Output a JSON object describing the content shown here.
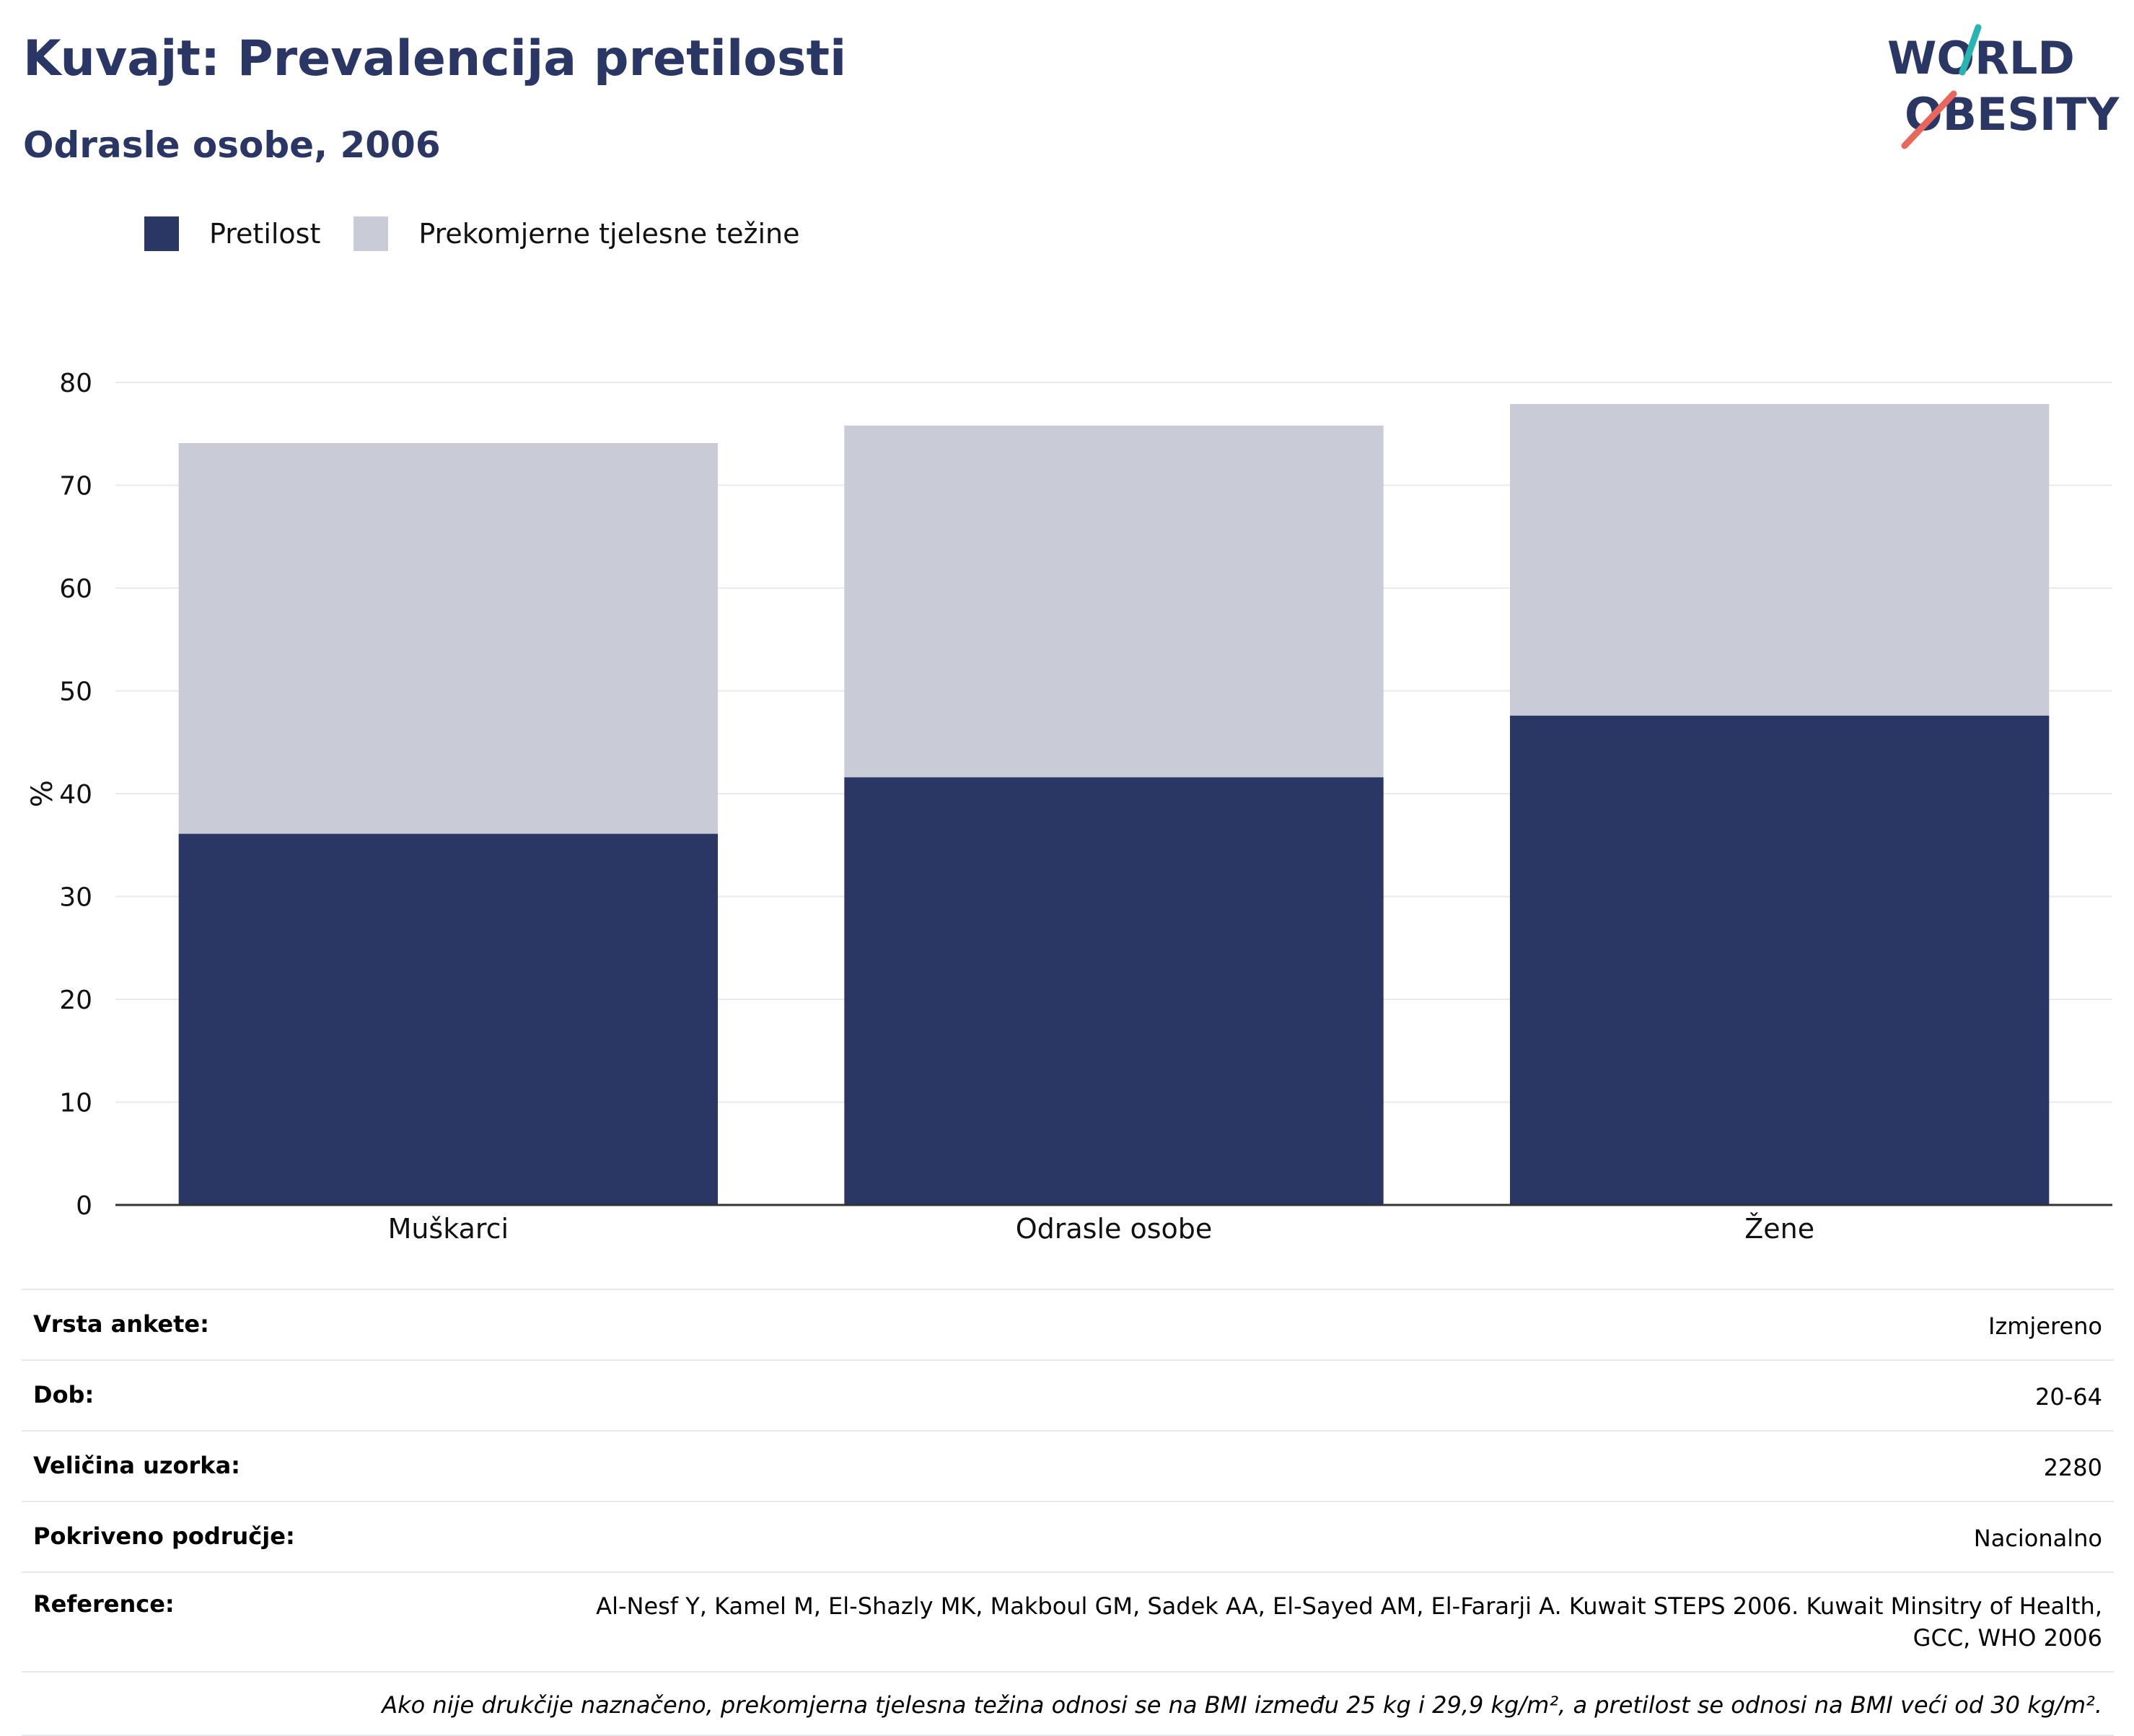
{
  "header": {
    "title": "Kuvajt: Prevalencija pretilosti",
    "subtitle": "Odrasle osobe, 2006"
  },
  "logo": {
    "line1": "WORLD",
    "line2": "OBESITY",
    "colors": {
      "text": "#2a3663",
      "slash_top": "#2ab3b1",
      "slash_bottom": "#e8665a"
    }
  },
  "legend": [
    {
      "label": "Pretilost",
      "color": "#2a3663"
    },
    {
      "label": "Prekomjerne tjelesne težine",
      "color": "#c9cbd6"
    }
  ],
  "chart_data": {
    "type": "bar",
    "stacked": true,
    "categories": [
      "Muškarci",
      "Odrasle osobe",
      "Žene"
    ],
    "series": [
      {
        "name": "Pretilost",
        "values": [
          36.1,
          41.6,
          47.6
        ],
        "color": "#2a3663"
      },
      {
        "name": "Prekomjerne tjelesne težine",
        "values": [
          38.0,
          34.2,
          30.3
        ],
        "color": "#c9cbd6"
      }
    ],
    "ylabel": "%",
    "ylim": [
      0,
      80
    ],
    "yticks": [
      0,
      10,
      20,
      30,
      40,
      50,
      60,
      70,
      80
    ],
    "grid": true,
    "legend_position": "top-left"
  },
  "info": {
    "rows": [
      {
        "label": "Vrsta ankete:",
        "value": "Izmjereno"
      },
      {
        "label": "Dob:",
        "value": "20-64"
      },
      {
        "label": "Veličina uzorka:",
        "value": "2280"
      },
      {
        "label": "Pokriveno područje:",
        "value": "Nacionalno"
      }
    ],
    "reference_label": "Reference:",
    "reference_line1": "Al-Nesf Y, Kamel M, El-Shazly MK, Makboul GM, Sadek AA, El-Sayed AM, El-Fararji A. Kuwait STEPS 2006. Kuwait Minsitry of Health,",
    "reference_line2": "GCC, WHO 2006",
    "note": "Ako nije drukčije naznačeno, prekomjerna tjelesna težina odnosi se na BMI između 25 kg i 29,9 kg/m², a pretilost se odnosi na BMI veći od 30 kg/m²."
  }
}
